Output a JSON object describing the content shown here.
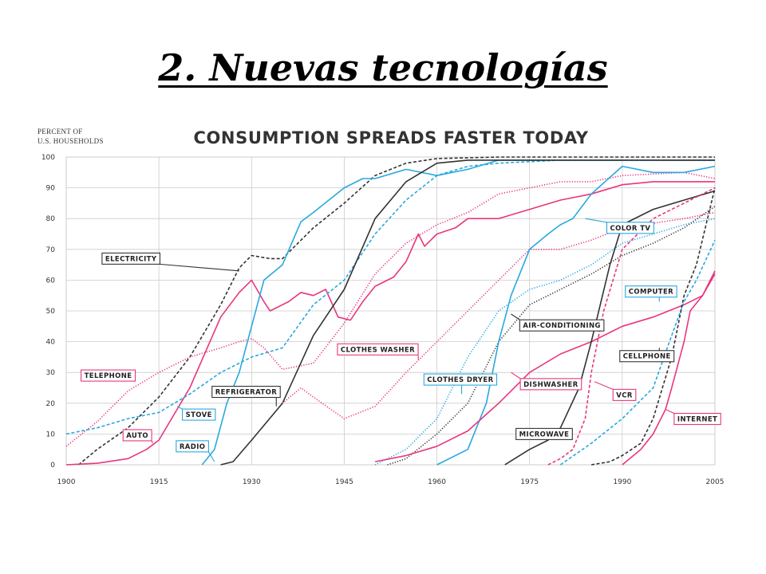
{
  "slide": {
    "title": "2. Nuevas tecnologías"
  },
  "colors": {
    "black": "#333333",
    "blue": "#29a8df",
    "pink": "#e8367e",
    "grid": "#cccccc"
  },
  "chart_data": {
    "type": "line",
    "title": "CONSUMPTION SPREADS FASTER TODAY",
    "ylabel": "PERCENT OF U.S. HOUSEHOLDS",
    "ylabel_lines": [
      "PERCENT OF",
      "U.S. HOUSEHOLDS"
    ],
    "xlim": [
      1900,
      2005
    ],
    "ylim": [
      0,
      100
    ],
    "x_ticks": [
      1900,
      1915,
      1930,
      1945,
      1960,
      1975,
      1990,
      2005
    ],
    "y_ticks": [
      0,
      10,
      20,
      30,
      40,
      50,
      60,
      70,
      80,
      90,
      100
    ],
    "grid": true,
    "legend": "none",
    "series": [
      {
        "name": "ELECTRICITY",
        "color": "black",
        "dash": "dashed",
        "points": [
          [
            1902,
            0
          ],
          [
            1905,
            5
          ],
          [
            1910,
            12
          ],
          [
            1915,
            22
          ],
          [
            1920,
            35
          ],
          [
            1925,
            52
          ],
          [
            1928,
            64
          ],
          [
            1930,
            68
          ],
          [
            1933,
            67
          ],
          [
            1935,
            67
          ],
          [
            1940,
            77
          ],
          [
            1945,
            85
          ],
          [
            1950,
            94
          ],
          [
            1955,
            98
          ],
          [
            1960,
            99.5
          ],
          [
            1970,
            100
          ],
          [
            2005,
            100
          ]
        ],
        "label": {
          "text": "ELECTRICITY",
          "x": 1905.8,
          "y": 67,
          "px": 1928,
          "py": 63
        }
      },
      {
        "name": "TELEPHONE",
        "color": "pink",
        "dash": "dotted",
        "points": [
          [
            1900,
            6
          ],
          [
            1905,
            14
          ],
          [
            1910,
            24
          ],
          [
            1915,
            30
          ],
          [
            1920,
            35
          ],
          [
            1925,
            38
          ],
          [
            1928,
            40
          ],
          [
            1930,
            41
          ],
          [
            1932,
            38
          ],
          [
            1935,
            31
          ],
          [
            1940,
            33
          ],
          [
            1945,
            46
          ],
          [
            1950,
            62
          ],
          [
            1955,
            72
          ],
          [
            1960,
            78
          ],
          [
            1965,
            82
          ],
          [
            1970,
            88
          ],
          [
            1975,
            90
          ],
          [
            1980,
            92
          ],
          [
            1985,
            92
          ],
          [
            1990,
            94
          ],
          [
            2000,
            95
          ],
          [
            2005,
            93
          ]
        ],
        "label": {
          "text": "TELEPHONE",
          "x": 1902.4,
          "y": 29,
          "px": 1911,
          "py": 27
        }
      },
      {
        "name": "AUTO",
        "color": "pink",
        "dash": "solid",
        "points": [
          [
            1900,
            0
          ],
          [
            1905,
            0.5
          ],
          [
            1910,
            2
          ],
          [
            1913,
            5
          ],
          [
            1915,
            8
          ],
          [
            1920,
            25
          ],
          [
            1925,
            48
          ],
          [
            1928,
            56
          ],
          [
            1930,
            60
          ],
          [
            1932,
            53
          ],
          [
            1933,
            50
          ],
          [
            1936,
            53
          ],
          [
            1938,
            56
          ],
          [
            1940,
            55
          ],
          [
            1942,
            57
          ],
          [
            1944,
            48
          ],
          [
            1946,
            47
          ],
          [
            1948,
            53
          ],
          [
            1950,
            58
          ],
          [
            1953,
            61
          ],
          [
            1955,
            66
          ],
          [
            1957,
            75
          ],
          [
            1958,
            71
          ],
          [
            1960,
            75
          ],
          [
            1963,
            77
          ],
          [
            1965,
            80
          ],
          [
            1970,
            80
          ],
          [
            1975,
            83
          ],
          [
            1980,
            86
          ],
          [
            1985,
            88
          ],
          [
            1990,
            91
          ],
          [
            1995,
            92
          ],
          [
            2005,
            92
          ]
        ],
        "label": {
          "text": "AUTO",
          "x": 1909.2,
          "y": 9.6,
          "px": 1914,
          "py": 7
        }
      },
      {
        "name": "STOVE",
        "color": "blue",
        "dash": "dashed",
        "points": [
          [
            1900,
            10
          ],
          [
            1905,
            12
          ],
          [
            1910,
            15
          ],
          [
            1915,
            17
          ],
          [
            1920,
            23
          ],
          [
            1925,
            30
          ],
          [
            1930,
            35
          ],
          [
            1935,
            38
          ],
          [
            1940,
            52
          ],
          [
            1945,
            60
          ],
          [
            1950,
            75
          ],
          [
            1955,
            86
          ],
          [
            1960,
            94
          ],
          [
            1965,
            97
          ],
          [
            1970,
            98
          ],
          [
            1980,
            99
          ],
          [
            2005,
            99
          ]
        ],
        "label": {
          "text": "STOVE",
          "x": 1918.8,
          "y": 16.3,
          "px": 1918,
          "py": 19
        }
      },
      {
        "name": "RADIO",
        "color": "blue",
        "dash": "solid",
        "points": [
          [
            1922,
            0
          ],
          [
            1924,
            5
          ],
          [
            1926,
            20
          ],
          [
            1928,
            30
          ],
          [
            1930,
            45
          ],
          [
            1932,
            60
          ],
          [
            1935,
            65
          ],
          [
            1938,
            79
          ],
          [
            1940,
            82
          ],
          [
            1945,
            90
          ],
          [
            1948,
            93
          ],
          [
            1950,
            93
          ],
          [
            1955,
            96
          ],
          [
            1960,
            94
          ],
          [
            1965,
            96
          ],
          [
            1970,
            99
          ],
          [
            1980,
            99
          ],
          [
            1990,
            99
          ],
          [
            2005,
            99
          ]
        ],
        "label": {
          "text": "RADIO",
          "x": 1917.8,
          "y": 6,
          "px": 1924,
          "py": 1
        }
      },
      {
        "name": "REFRIGERATOR",
        "color": "black",
        "dash": "solid",
        "points": [
          [
            1925,
            0
          ],
          [
            1927,
            1
          ],
          [
            1930,
            8
          ],
          [
            1935,
            20
          ],
          [
            1940,
            42
          ],
          [
            1945,
            57
          ],
          [
            1950,
            80
          ],
          [
            1955,
            92
          ],
          [
            1960,
            98
          ],
          [
            1965,
            99
          ],
          [
            2005,
            99
          ]
        ],
        "label": {
          "text": "REFRIGERATOR",
          "x": 1923.6,
          "y": 23.7,
          "px": 1934,
          "py": 19
        }
      },
      {
        "name": "CLOTHES WASHER",
        "color": "pink",
        "dash": "dotted",
        "points": [
          [
            1935,
            20
          ],
          [
            1938,
            25
          ],
          [
            1940,
            22
          ],
          [
            1945,
            15
          ],
          [
            1950,
            19
          ],
          [
            1955,
            30
          ],
          [
            1960,
            40
          ],
          [
            1965,
            50
          ],
          [
            1970,
            60
          ],
          [
            1975,
            70
          ],
          [
            1980,
            70
          ],
          [
            1985,
            73
          ],
          [
            1990,
            77
          ],
          [
            2000,
            80
          ],
          [
            2005,
            82
          ]
        ],
        "label": {
          "text": "CLOTHES WASHER",
          "x": 1943.9,
          "y": 37.5,
          "px": 1957,
          "py": 34
        }
      },
      {
        "name": "CLOTHES DRYER",
        "color": "blue",
        "dash": "dotted",
        "points": [
          [
            1950,
            0
          ],
          [
            1955,
            5
          ],
          [
            1960,
            15
          ],
          [
            1965,
            35
          ],
          [
            1970,
            50
          ],
          [
            1975,
            57
          ],
          [
            1980,
            60
          ],
          [
            1985,
            65
          ],
          [
            1990,
            72
          ],
          [
            2000,
            78
          ],
          [
            2005,
            80
          ]
        ],
        "label": {
          "text": "CLOTHES DRYER",
          "x": 1957.9,
          "y": 27.7,
          "px": 1964,
          "py": 23
        }
      },
      {
        "name": "AIR-CONDITIONING",
        "color": "black",
        "dash": "dotted",
        "points": [
          [
            1952,
            0
          ],
          [
            1955,
            2
          ],
          [
            1960,
            10
          ],
          [
            1965,
            20
          ],
          [
            1970,
            40
          ],
          [
            1975,
            52
          ],
          [
            1980,
            57
          ],
          [
            1985,
            62
          ],
          [
            1990,
            68
          ],
          [
            1995,
            72
          ],
          [
            2000,
            77
          ],
          [
            2005,
            84
          ]
        ],
        "label": {
          "text": "AIR-CONDITIONING",
          "x": 1973.4,
          "y": 45.3,
          "px": 1972,
          "py": 49
        }
      },
      {
        "name": "COLOR TV",
        "color": "blue",
        "dash": "solid",
        "points": [
          [
            1960,
            0
          ],
          [
            1965,
            5
          ],
          [
            1968,
            20
          ],
          [
            1970,
            40
          ],
          [
            1972,
            55
          ],
          [
            1975,
            70
          ],
          [
            1978,
            75
          ],
          [
            1980,
            78
          ],
          [
            1982,
            80
          ],
          [
            1985,
            88
          ],
          [
            1990,
            97
          ],
          [
            1995,
            95
          ],
          [
            2000,
            95
          ],
          [
            2005,
            97
          ]
        ],
        "label": {
          "text": "COLOR TV",
          "x": 1987.5,
          "y": 77,
          "px": 1984,
          "py": 80
        }
      },
      {
        "name": "DISHWASHER",
        "color": "pink",
        "dash": "solid",
        "points": [
          [
            1950,
            1
          ],
          [
            1955,
            3
          ],
          [
            1960,
            6
          ],
          [
            1965,
            11
          ],
          [
            1970,
            20
          ],
          [
            1975,
            30
          ],
          [
            1980,
            36
          ],
          [
            1985,
            40
          ],
          [
            1990,
            45
          ],
          [
            1995,
            48
          ],
          [
            2000,
            52
          ],
          [
            2003,
            55
          ],
          [
            2005,
            63
          ]
        ],
        "label": {
          "text": "DISHWASHER",
          "x": 1973.5,
          "y": 26.2,
          "px": 1972,
          "py": 30
        }
      },
      {
        "name": "MICROWAVE",
        "color": "black",
        "dash": "solid",
        "points": [
          [
            1971,
            0
          ],
          [
            1975,
            5
          ],
          [
            1978,
            8
          ],
          [
            1980,
            12
          ],
          [
            1983,
            25
          ],
          [
            1985,
            40
          ],
          [
            1988,
            65
          ],
          [
            1990,
            78
          ],
          [
            1995,
            83
          ],
          [
            2000,
            86
          ],
          [
            2005,
            89
          ]
        ],
        "label": {
          "text": "MICROWAVE",
          "x": 1972.8,
          "y": 10,
          "px": 1979,
          "py": 8
        }
      },
      {
        "name": "COMPUTER",
        "color": "blue",
        "dash": "dashed",
        "points": [
          [
            1980,
            0
          ],
          [
            1985,
            7
          ],
          [
            1990,
            15
          ],
          [
            1995,
            25
          ],
          [
            1998,
            42
          ],
          [
            2000,
            53
          ],
          [
            2002,
            60
          ],
          [
            2005,
            73
          ]
        ],
        "label": {
          "text": "COMPUTER",
          "x": 1990.5,
          "y": 56.3,
          "px": 1996,
          "py": 53
        }
      },
      {
        "name": "VCR",
        "color": "pink",
        "dash": "dashed",
        "points": [
          [
            1978,
            0
          ],
          [
            1980,
            2
          ],
          [
            1982,
            5
          ],
          [
            1984,
            15
          ],
          [
            1985,
            30
          ],
          [
            1987,
            50
          ],
          [
            1990,
            70
          ],
          [
            1995,
            80
          ],
          [
            2000,
            85
          ],
          [
            2005,
            90
          ]
        ],
        "label": {
          "text": "VCR",
          "x": 1988.5,
          "y": 22.7,
          "px": 1985.5,
          "py": 27
        }
      },
      {
        "name": "CELLPHONE",
        "color": "black",
        "dash": "dashed",
        "points": [
          [
            1985,
            0
          ],
          [
            1988,
            1
          ],
          [
            1990,
            3
          ],
          [
            1993,
            7
          ],
          [
            1995,
            15
          ],
          [
            1998,
            35
          ],
          [
            2000,
            55
          ],
          [
            2002,
            65
          ],
          [
            2005,
            90
          ]
        ],
        "label": {
          "text": "CELLPHONE",
          "x": 1989.6,
          "y": 35.3,
          "px": 1996,
          "py": 38
        }
      },
      {
        "name": "INTERNET",
        "color": "pink",
        "dash": "solid",
        "points": [
          [
            1990,
            0
          ],
          [
            1993,
            5
          ],
          [
            1995,
            10
          ],
          [
            1997,
            18
          ],
          [
            1998,
            25
          ],
          [
            2000,
            40
          ],
          [
            2001,
            50
          ],
          [
            2003,
            55
          ],
          [
            2005,
            62
          ]
        ],
        "label": {
          "text": "INTERNET",
          "x": 1998.4,
          "y": 14.9,
          "px": 1997,
          "py": 18
        }
      }
    ]
  }
}
